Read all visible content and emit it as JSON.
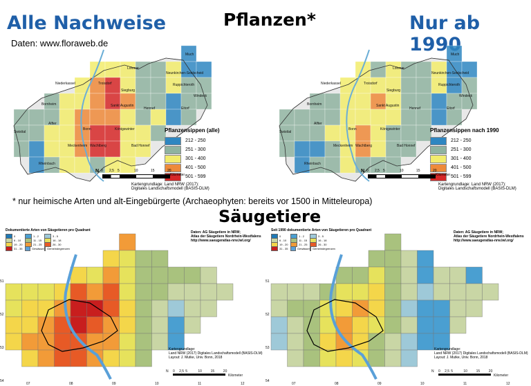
{
  "top": {
    "left_title": "Alle Nachweise",
    "center_title": "Pflanzen*",
    "right_title": "Nur ab 1990",
    "source": "Daten: www.floraweb.de",
    "footnote": "* nur heimische Arten und alt-Eingebürgerte (Archaeophyten: bereits vor 1500 in Mitteleuropa)",
    "maps": [
      {
        "legend_title": "Pflanzensippen (alle)",
        "classes": [
          "212 - 250",
          "251 - 300",
          "301 - 400",
          "401 - 500",
          "501 - 599"
        ],
        "colors": [
          "#2e86c1",
          "#8fb3a0",
          "#f2ec6c",
          "#ee8a3a",
          "#d62828"
        ],
        "places": [
          "Much",
          "Lohmar",
          "Neunkirchen-Seelscheid",
          "Niederkassel",
          "Troisdorf",
          "Ruppichteroth",
          "Siegburg",
          "Windeck",
          "Bornheim",
          "Sankt Augustin",
          "Hennef",
          "Eitorf",
          "Alfter",
          "Bonn",
          "Königswinter",
          "Swisttal",
          "Bad Honnef",
          "Rheinbach",
          "Meckenheim",
          "Wachtberg"
        ]
      },
      {
        "legend_title": "Pflanzensippen nach 1990",
        "classes": [
          "212 - 250",
          "251 - 300",
          "301 - 400",
          "401 - 500",
          "501 - 599"
        ],
        "colors": [
          "#2e86c1",
          "#8fb3a0",
          "#f2ec6c",
          "#ee8a3a",
          "#d62828"
        ],
        "places": [
          "Much",
          "Lohmar",
          "Neunkirchen-Seelscheid",
          "Niederkassel",
          "Troisdorf",
          "Ruppichteroth",
          "Siegburg",
          "Windeck",
          "Bornheim",
          "Sankt Augustin",
          "Hennef",
          "Eitorf",
          "Alfter",
          "Bonn",
          "Königswinter",
          "Swisttal",
          "Bad Honnef",
          "Rheinbach",
          "Meckenheim",
          "Wachtberg"
        ]
      }
    ],
    "scale_labels": [
      "0",
      "2,5",
      "5",
      "10",
      "15",
      "20"
    ],
    "scale_unit": "Kilometer",
    "credit_line1": "Kartengrundlage: Land NRW (2017):",
    "credit_line2": "Digitales Landschaftsmodell (BASIS-DLM)",
    "north": "N"
  },
  "bottom": {
    "title": "Säugetiere",
    "maps": [
      {
        "chart_title": "Dokumentierte Arten von Säugetieren pro Quadrant",
        "legend": [
          "0",
          "1 - 2",
          "3 - 5",
          "6 - 10",
          "11 - 15",
          "16 - 18",
          "19 - 20",
          "21 - 25",
          "26 - 30",
          "31 - 35"
        ],
        "extra_legend": [
          "Gewässer",
          "Gemeindegrenzen"
        ],
        "source_line1": "Daten: AG Säugetiere in NRW;",
        "source_line2": "Atlas der Säugetiere Nordrhein-Westfalens",
        "source_line3": "http://www.saeugeratlas-nrw.lwl.org/",
        "credit_line1": "Kartengrundlage:",
        "credit_line2": "Land NRW (2017) Digitales Landschaftsmodell (BASIS-DLM)",
        "credit_line3": "Layout: J. Mutke, Univ. Bonn, 2018",
        "x_ticks": [
          "07",
          "08",
          "09",
          "10",
          "11",
          "12"
        ],
        "y_ticks": [
          "51",
          "52",
          "53",
          "54"
        ]
      },
      {
        "chart_title": "Seit 1990 dokumentierte Arten von Säugetieren pro Quadrant",
        "legend": [
          "0",
          "1 - 2",
          "3 - 5",
          "6 - 10",
          "11 - 15",
          "16 - 18",
          "19 - 20",
          "21 - 25",
          "26 - 30",
          "31 - 35"
        ],
        "extra_legend": [
          "Gewässer",
          "Gemeindegrenzen"
        ],
        "source_line1": "Daten: AG Säugetiere in NRW;",
        "source_line2": "Atlas der Säugetiere Nordrhein-Westfalens",
        "source_line3": "http://www.saeugeratlas-nrw.lwl.org/",
        "credit_line1": "Kartengrundlage:",
        "credit_line2": "Land NRW (2017) Digitales Landschaftsmodell (BASIS-DLM)",
        "credit_line3": "Layout: J. Mutke, Univ. Bonn, 2018",
        "x_ticks": [
          "07",
          "08",
          "09",
          "10",
          "11",
          "12"
        ],
        "y_ticks": [
          "51",
          "52",
          "53",
          "54"
        ]
      }
    ],
    "mammal_colors": [
      "#1f78b4",
      "#4a9fd1",
      "#9ec9d8",
      "#c9d6a5",
      "#a9c27e",
      "#e6e25c",
      "#f4d64a",
      "#f29b38",
      "#e75a26",
      "#c81e1e"
    ],
    "scale_labels": [
      "0",
      "2,5",
      "5",
      "10",
      "15",
      "20"
    ],
    "scale_unit": "Kilometer",
    "north": "N"
  }
}
